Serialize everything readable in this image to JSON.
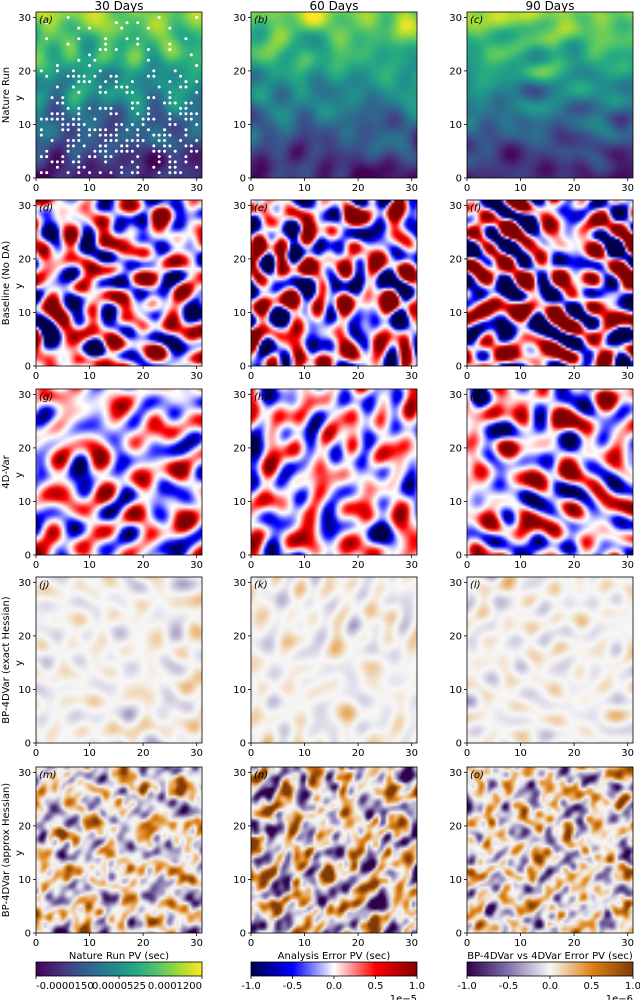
{
  "chart_data": {
    "type": "heatmap",
    "column_titles": [
      "30 Days",
      "60 Days",
      "90 Days"
    ],
    "row_labels": [
      "Nature Run",
      "Baseline (No DA)",
      "4D-Var",
      "BP-4DVar (exact Hessian)",
      "BP-4DVar (approx Hessian)"
    ],
    "panel_labels": [
      "(a)",
      "(b)",
      "(c)",
      "(d)",
      "(e)",
      "(f)",
      "(g)",
      "(h)",
      "(i)",
      "(j)",
      "(k)",
      "(l)",
      "(m)",
      "(n)",
      "(o)"
    ],
    "ylabel": "y",
    "x_ticks": [
      "0",
      "10",
      "20",
      "30"
    ],
    "y_ticks": [
      "0",
      "10",
      "20",
      "30"
    ],
    "xlim": [
      0,
      31
    ],
    "ylim": [
      0,
      31
    ],
    "grid": false,
    "observation_markers": "white dots on panel (a)",
    "colorbars": [
      {
        "label": "Nature Run PV (sec)",
        "colormap": "viridis",
        "range": [
          -1.5e-05,
          0.00012
        ],
        "ticks": [
          "-0.0000150",
          "0.0000525",
          "0.0001200"
        ],
        "offset_text": ""
      },
      {
        "label": "Analysis Error PV (sec)",
        "colormap": "seismic",
        "range": [
          -1.0,
          1.0
        ],
        "ticks": [
          "-1.0",
          "-0.5",
          "0.0",
          "0.5",
          "1.0"
        ],
        "offset_text": "1e−5"
      },
      {
        "label": "BP-4DVar vs 4DVar Error PV (sec)",
        "colormap": "PuOr_r",
        "range": [
          -1.0,
          1.0
        ],
        "ticks": [
          "-1.0",
          "-0.5",
          "0.0",
          "0.5",
          "1.0"
        ],
        "offset_text": "1e−6"
      }
    ]
  }
}
